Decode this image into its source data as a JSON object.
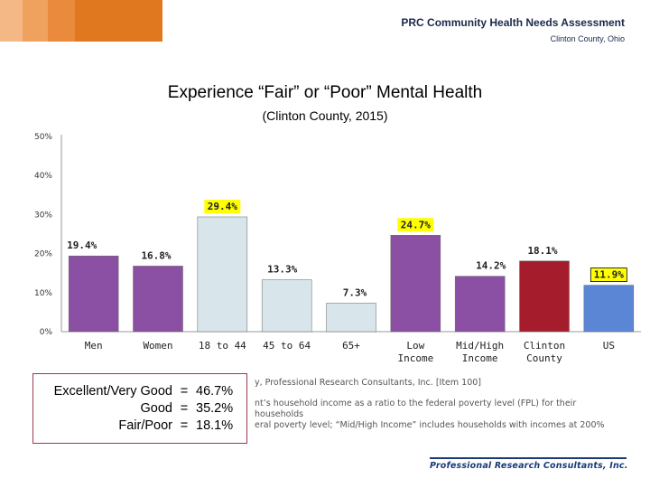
{
  "header": {
    "title": "PRC Community Health Needs Assessment",
    "subtitle": "Clinton County, Ohio",
    "logo_colors": [
      "#f3b885",
      "#efa25e",
      "#e98a3c",
      "#e07820"
    ]
  },
  "chart_data": {
    "type": "bar",
    "title": "Experience “Fair” or “Poor” Mental Health",
    "subtitle": "(Clinton County, 2015)",
    "categories": [
      [
        "Men"
      ],
      [
        "Women"
      ],
      [
        "18 to 44"
      ],
      [
        "45 to 64"
      ],
      [
        "65+"
      ],
      [
        "Low",
        "Income"
      ],
      [
        "Mid/High",
        "Income"
      ],
      [
        "Clinton",
        "County"
      ],
      [
        "US"
      ]
    ],
    "values": [
      19.4,
      16.8,
      29.4,
      13.3,
      7.3,
      24.7,
      14.2,
      18.1,
      11.9
    ],
    "value_labels": [
      "19.4%",
      "16.8%",
      "29.4%",
      "13.3%",
      "7.3%",
      "24.7%",
      "14.2%",
      "18.1%",
      "11.9%"
    ],
    "bar_colors": [
      "#8b4fa3",
      "#8b4fa3",
      "#d8e6ec",
      "#d8e6ec",
      "#d8e6ec",
      "#8b4fa3",
      "#8b4fa3",
      "#a51d2d",
      "#5b86d6"
    ],
    "highlighted_labels": [
      2,
      5,
      8
    ],
    "highlight_color": "#ffff00",
    "yticks": [
      "0%",
      "10%",
      "20%",
      "30%",
      "40%",
      "50%"
    ],
    "ylim": [
      0,
      50
    ],
    "grid": false
  },
  "callout": {
    "rows": [
      {
        "label": "Excellent/Very Good",
        "value": "46.7%"
      },
      {
        "label": "Good",
        "value": "35.2%"
      },
      {
        "label": "Fair/Poor",
        "value": "18.1%"
      }
    ],
    "equals": "="
  },
  "notes": {
    "line1": "y, Professional Research Consultants, Inc. [Item 100]",
    "line2": "nt’s household income as a ratio to the federal poverty level (FPL) for their",
    "line3": "households",
    "line4": "eral poverty level; “Mid/High Income” includes households with incomes at 200%"
  },
  "footer": {
    "logo_text": "Professional Research Consultants, Inc."
  }
}
